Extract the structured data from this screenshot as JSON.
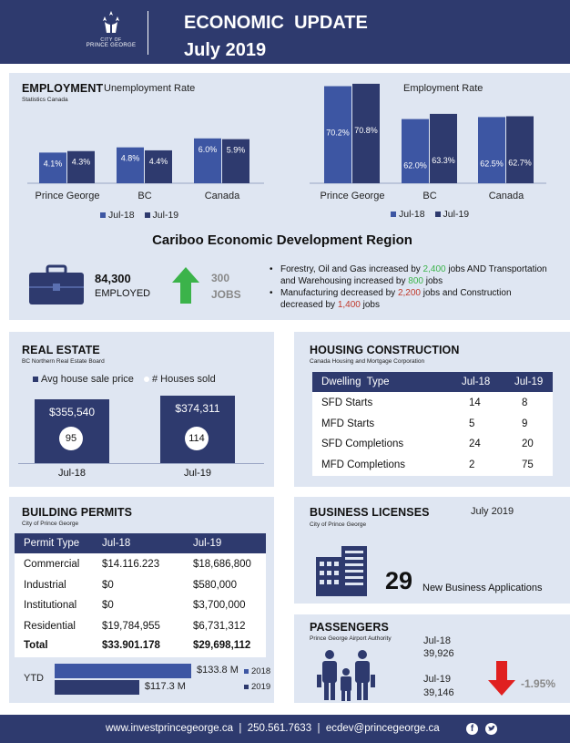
{
  "header": {
    "logo_line1": "CITY OF",
    "logo_line2": "PRINCE GEORGE",
    "title": "ECONOMIC  UPDATE",
    "subtitle": "July 2019"
  },
  "employment": {
    "title": "EMPLOYMENT",
    "source": "Statistics Canada",
    "unemployment_title": "Unemployment Rate",
    "employment_title": "Employment Rate",
    "legend_a": "Jul-18",
    "legend_b": "Jul-19"
  },
  "chart_data": [
    {
      "type": "bar",
      "title": "Unemployment Rate",
      "categories": [
        "Prince George",
        "BC",
        "Canada"
      ],
      "series": [
        {
          "name": "Jul-18",
          "values": [
            4.1,
            4.8,
            6.0
          ],
          "labels": [
            "4.1%",
            "4.8%",
            "6.0%"
          ],
          "color": "#3d56a3"
        },
        {
          "name": "Jul-19",
          "values": [
            4.3,
            4.4,
            5.9
          ],
          "labels": [
            "4.3%",
            "4.4%",
            "5.9%"
          ],
          "color": "#2e3a6e"
        }
      ]
    },
    {
      "type": "bar",
      "title": "Employment Rate",
      "categories": [
        "Prince George",
        "BC",
        "Canada"
      ],
      "series": [
        {
          "name": "Jul-18",
          "values": [
            70.2,
            62.0,
            62.5
          ],
          "labels": [
            "70.2%",
            "62.0%",
            "62.5%"
          ],
          "color": "#3d56a3"
        },
        {
          "name": "Jul-19",
          "values": [
            70.8,
            63.3,
            62.7
          ],
          "labels": [
            "70.8%",
            "63.3%",
            "62.7%"
          ],
          "color": "#2e3a6e"
        }
      ]
    }
  ],
  "cariboo": {
    "title": "Cariboo Economic Development Region",
    "employed_value": "84,300",
    "employed_label": "EMPLOYED",
    "jobs_value": "300",
    "jobs_label": "JOBS",
    "bullet1_a": "Forestry, Oil and Gas increased by ",
    "bullet1_b": "2,400",
    "bullet1_c": " jobs AND Transportation and Warehousing increased by ",
    "bullet1_d": "800",
    "bullet1_e": " jobs",
    "bullet2_a": "Manufacturing decreased by ",
    "bullet2_b": "2,200",
    "bullet2_c": " jobs and Construction decreased by ",
    "bullet2_d": "1,400",
    "bullet2_e": " jobs"
  },
  "real_estate": {
    "title": "REAL ESTATE",
    "source": "BC Northern Real Estate Board",
    "legend_price": "Avg house sale price",
    "legend_sold": "# Houses sold",
    "periods": [
      {
        "label": "Jul-18",
        "price": "$355,540",
        "price_value": 355540,
        "sold": "95"
      },
      {
        "label": "Jul-19",
        "price": "$374,311",
        "price_value": 374311,
        "sold": "114"
      }
    ]
  },
  "housing": {
    "title": "HOUSING CONSTRUCTION",
    "source": "Canada Housing and Mortgage Corporation",
    "headers": [
      "Dwelling  Type",
      "Jul-18",
      "Jul-19"
    ],
    "rows": [
      [
        "SFD Starts",
        "14",
        "8"
      ],
      [
        "MFD Starts",
        "5",
        "9"
      ],
      [
        "SFD Completions",
        "24",
        "20"
      ],
      [
        "MFD Completions",
        "2",
        "75"
      ]
    ]
  },
  "permits": {
    "title": "BUILDING PERMITS",
    "source": "City of Prince George",
    "headers": [
      "Permit Type",
      "Jul-18",
      "Jul-19"
    ],
    "rows": [
      [
        "Commercial",
        "$14.116.223",
        "$18,686,800"
      ],
      [
        "Industrial",
        "$0",
        "$580,000"
      ],
      [
        "Institutional",
        "$0",
        "$3,700,000"
      ],
      [
        "Residential",
        "$19,784,955",
        "$6,731,312"
      ]
    ],
    "total": [
      "Total",
      "$33.901.178",
      "$29,698,112"
    ],
    "ytd_label": "YTD",
    "ytd_2018": "$133.8 M",
    "ytd_2018_value": 133.8,
    "ytd_2019": "$117.3 M",
    "ytd_2019_value": 117.3,
    "legend_2018": "2018",
    "legend_2019": "2019"
  },
  "licenses": {
    "title": "BUSINESS LICENSES",
    "source": "City of Prince George",
    "period": "July 2019",
    "count": "29",
    "count_label": "New Business Applications"
  },
  "passengers": {
    "title": "PASSENGERS",
    "source": "Prince George Airport Authority",
    "jul18_label": "Jul-18",
    "jul18_value": "39,926",
    "jul19_label": "Jul-19",
    "jul19_value": "39,146",
    "change": "-1.95%"
  },
  "footer": {
    "text": "www.investprincegeorge.ca  |  250.561.7633  |  ecdev@princegeorge.ca"
  }
}
